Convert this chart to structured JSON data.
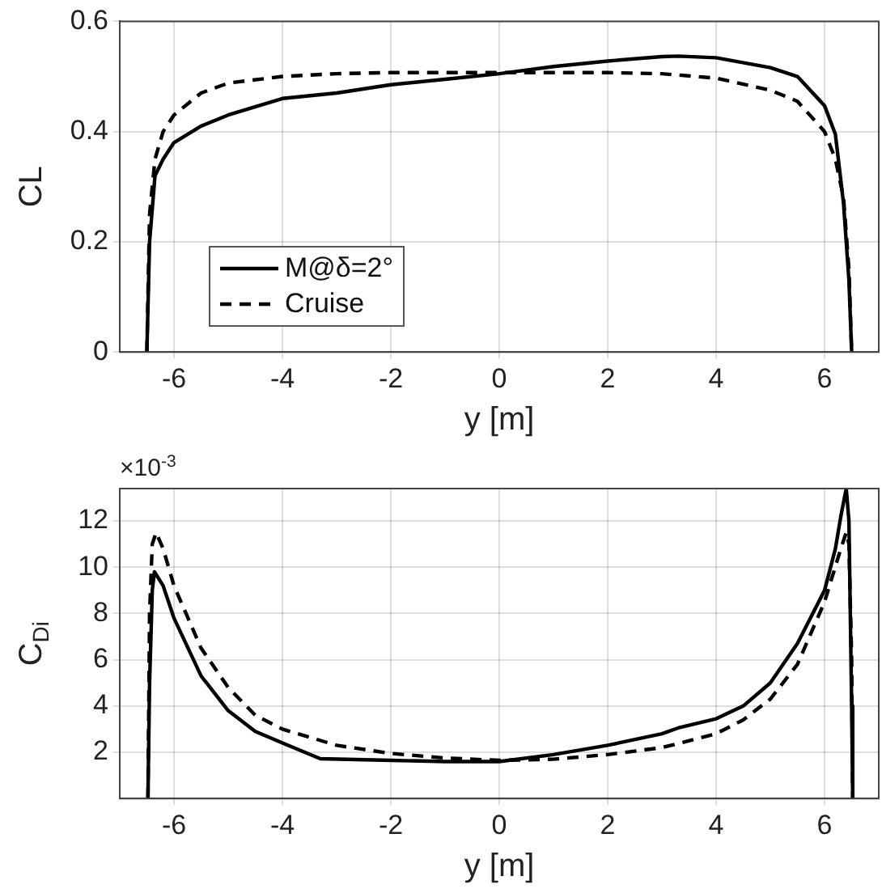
{
  "chart_data": [
    {
      "type": "line",
      "xlabel": "y [m]",
      "ylabel": "CL",
      "xlim": [
        -7,
        7
      ],
      "xticks": [
        -6,
        -4,
        -2,
        0,
        2,
        4,
        6
      ],
      "ylim": [
        0,
        0.6
      ],
      "yticks": [
        0,
        0.2,
        0.4,
        0.6
      ],
      "grid": true,
      "legend": "bottom left",
      "marker": "none",
      "series": [
        {
          "name": "M@δ=2°",
          "color": "#000000",
          "line_style": "solid",
          "x": [
            -6.5,
            -6.45,
            -6.35,
            -6.2,
            -6,
            -5.5,
            -5,
            -4,
            -3,
            -2,
            -1,
            0,
            1,
            2,
            3,
            3.3,
            4,
            5,
            5.5,
            6,
            6.2,
            6.35,
            6.45,
            6.5
          ],
          "values": [
            0,
            0.2,
            0.32,
            0.35,
            0.38,
            0.41,
            0.43,
            0.46,
            0.47,
            0.485,
            0.495,
            0.505,
            0.518,
            0.528,
            0.536,
            0.537,
            0.534,
            0.516,
            0.5,
            0.447,
            0.395,
            0.27,
            0.13,
            0
          ]
        },
        {
          "name": "Cruise",
          "color": "#000000",
          "line_style": "dashed",
          "x": [
            -6.5,
            -6.45,
            -6.35,
            -6.2,
            -6,
            -5.5,
            -5,
            -4,
            -3,
            -2,
            -1,
            0,
            1,
            2,
            3,
            4,
            5,
            5.5,
            6,
            6.2,
            6.35,
            6.45,
            6.5
          ],
          "values": [
            0,
            0.25,
            0.35,
            0.4,
            0.43,
            0.47,
            0.488,
            0.5,
            0.505,
            0.507,
            0.507,
            0.507,
            0.507,
            0.507,
            0.505,
            0.497,
            0.475,
            0.455,
            0.4,
            0.35,
            0.28,
            0.15,
            0
          ]
        }
      ]
    },
    {
      "type": "line",
      "xlabel": "y [m]",
      "ylabel": "C$_{Di}$",
      "annotations": [
        "×10$^{-3}$"
      ],
      "xlim": [
        -7,
        7
      ],
      "xticks": [
        -6,
        -4,
        -2,
        0,
        2,
        4,
        6
      ],
      "ylim": [
        0,
        13.4
      ],
      "yticks": [
        2,
        4,
        6,
        8,
        10,
        12
      ],
      "grid": true,
      "marker": "none",
      "series": [
        {
          "color": "#000000",
          "line_style": "solid",
          "x": [
            -6.48,
            -6.45,
            -6.4,
            -6.36,
            -6.2,
            -6,
            -5.5,
            -5,
            -4.5,
            -4,
            -3.3,
            -2,
            -1,
            0,
            1,
            2,
            3,
            3.3,
            4,
            4.5,
            5,
            5.5,
            6,
            6.2,
            6.3,
            6.4,
            6.45,
            6.5,
            6.52
          ],
          "values": [
            0,
            5,
            9,
            9.8,
            9.2,
            7.8,
            5.3,
            3.8,
            2.9,
            2.4,
            1.72,
            1.65,
            1.6,
            1.6,
            1.9,
            2.3,
            2.8,
            3.05,
            3.45,
            4.0,
            5.0,
            6.7,
            9.0,
            10.8,
            12.2,
            13.4,
            12,
            4,
            0
          ]
        },
        {
          "color": "#000000",
          "line_style": "dashed",
          "x": [
            -6.48,
            -6.45,
            -6.4,
            -6.33,
            -6.2,
            -6,
            -5.5,
            -5,
            -4.5,
            -4,
            -3,
            -2,
            -1,
            0,
            1,
            2,
            3,
            4,
            4.5,
            5,
            5.5,
            6,
            6.3,
            6.4,
            6.45,
            6.5,
            6.52
          ],
          "values": [
            0,
            8,
            11,
            11.5,
            10.8,
            9.2,
            6.5,
            4.8,
            3.6,
            3.0,
            2.3,
            1.95,
            1.75,
            1.65,
            1.7,
            1.9,
            2.2,
            2.8,
            3.4,
            4.3,
            5.8,
            8.5,
            10.8,
            11.5,
            11,
            6,
            0
          ]
        }
      ]
    }
  ]
}
